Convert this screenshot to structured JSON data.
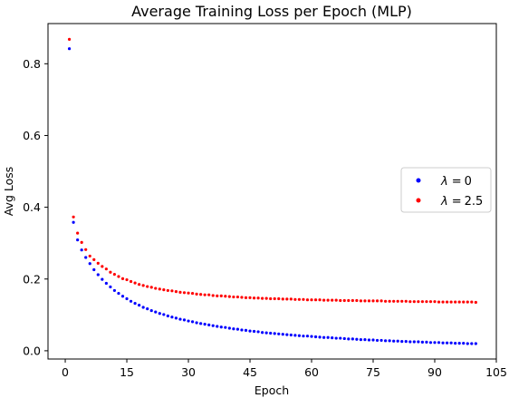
{
  "chart_data": {
    "type": "scatter",
    "title": "Average Training Loss per Epoch (MLP)",
    "xlabel": "Epoch",
    "ylabel": "Avg Loss",
    "xlim": [
      -4.2,
      105.0
    ],
    "ylim": [
      -0.023,
      0.912
    ],
    "xticks": [
      0,
      15,
      30,
      45,
      60,
      75,
      90,
      105
    ],
    "yticks": [
      0.0,
      0.2,
      0.4,
      0.6,
      0.8
    ],
    "ytick_labels": [
      "0.0",
      "0.2",
      "0.4",
      "0.6",
      "0.8"
    ],
    "grid": false,
    "legend_position": "center-right",
    "series": [
      {
        "name_prefix": "λ",
        "name_value": "0",
        "color": "#0000ff",
        "x": [
          1,
          2,
          3,
          4,
          5,
          6,
          7,
          8,
          9,
          10,
          11,
          12,
          13,
          14,
          15,
          16,
          17,
          18,
          19,
          20,
          21,
          22,
          23,
          24,
          25,
          26,
          27,
          28,
          29,
          30,
          31,
          32,
          33,
          34,
          35,
          36,
          37,
          38,
          39,
          40,
          41,
          42,
          43,
          44,
          45,
          46,
          47,
          48,
          49,
          50,
          51,
          52,
          53,
          54,
          55,
          56,
          57,
          58,
          59,
          60,
          61,
          62,
          63,
          64,
          65,
          66,
          67,
          68,
          69,
          70,
          71,
          72,
          73,
          74,
          75,
          76,
          77,
          78,
          79,
          80,
          81,
          82,
          83,
          84,
          85,
          86,
          87,
          88,
          89,
          90,
          91,
          92,
          93,
          94,
          95,
          96,
          97,
          98,
          99,
          100
        ],
        "y": [
          0.842,
          0.358,
          0.309,
          0.281,
          0.26,
          0.243,
          0.226,
          0.212,
          0.199,
          0.188,
          0.178,
          0.168,
          0.16,
          0.152,
          0.145,
          0.138,
          0.132,
          0.127,
          0.121,
          0.117,
          0.112,
          0.108,
          0.104,
          0.101,
          0.097,
          0.094,
          0.091,
          0.088,
          0.086,
          0.083,
          0.081,
          0.078,
          0.076,
          0.074,
          0.072,
          0.07,
          0.068,
          0.066,
          0.065,
          0.063,
          0.061,
          0.06,
          0.058,
          0.057,
          0.055,
          0.054,
          0.053,
          0.051,
          0.05,
          0.049,
          0.048,
          0.047,
          0.046,
          0.045,
          0.044,
          0.043,
          0.042,
          0.041,
          0.041,
          0.04,
          0.039,
          0.038,
          0.037,
          0.037,
          0.036,
          0.035,
          0.035,
          0.034,
          0.033,
          0.033,
          0.032,
          0.031,
          0.031,
          0.03,
          0.03,
          0.029,
          0.029,
          0.028,
          0.028,
          0.027,
          0.027,
          0.026,
          0.026,
          0.025,
          0.025,
          0.025,
          0.024,
          0.024,
          0.023,
          0.023,
          0.023,
          0.022,
          0.022,
          0.022,
          0.021,
          0.021,
          0.021,
          0.02,
          0.02,
          0.02
        ]
      },
      {
        "name_prefix": "λ",
        "name_value": "2.5",
        "color": "#ff0000",
        "x": [
          1,
          2,
          3,
          4,
          5,
          6,
          7,
          8,
          9,
          10,
          11,
          12,
          13,
          14,
          15,
          16,
          17,
          18,
          19,
          20,
          21,
          22,
          23,
          24,
          25,
          26,
          27,
          28,
          29,
          30,
          31,
          32,
          33,
          34,
          35,
          36,
          37,
          38,
          39,
          40,
          41,
          42,
          43,
          44,
          45,
          46,
          47,
          48,
          49,
          50,
          51,
          52,
          53,
          54,
          55,
          56,
          57,
          58,
          59,
          60,
          61,
          62,
          63,
          64,
          65,
          66,
          67,
          68,
          69,
          70,
          71,
          72,
          73,
          74,
          75,
          76,
          77,
          78,
          79,
          80,
          81,
          82,
          83,
          84,
          85,
          86,
          87,
          88,
          89,
          90,
          91,
          92,
          93,
          94,
          95,
          96,
          97,
          98,
          99,
          100
        ],
        "y": [
          0.868,
          0.373,
          0.328,
          0.302,
          0.282,
          0.264,
          0.254,
          0.244,
          0.235,
          0.228,
          0.219,
          0.213,
          0.207,
          0.201,
          0.198,
          0.193,
          0.189,
          0.185,
          0.182,
          0.179,
          0.177,
          0.174,
          0.172,
          0.17,
          0.168,
          0.167,
          0.165,
          0.163,
          0.162,
          0.161,
          0.16,
          0.158,
          0.157,
          0.156,
          0.156,
          0.154,
          0.153,
          0.153,
          0.152,
          0.151,
          0.15,
          0.15,
          0.149,
          0.148,
          0.148,
          0.147,
          0.147,
          0.146,
          0.146,
          0.145,
          0.145,
          0.145,
          0.144,
          0.144,
          0.144,
          0.143,
          0.143,
          0.143,
          0.142,
          0.142,
          0.142,
          0.142,
          0.141,
          0.141,
          0.141,
          0.141,
          0.14,
          0.14,
          0.14,
          0.14,
          0.14,
          0.139,
          0.139,
          0.139,
          0.139,
          0.139,
          0.139,
          0.138,
          0.138,
          0.138,
          0.138,
          0.138,
          0.138,
          0.137,
          0.137,
          0.137,
          0.137,
          0.137,
          0.137,
          0.137,
          0.136,
          0.136,
          0.136,
          0.136,
          0.136,
          0.136,
          0.136,
          0.136,
          0.136,
          0.135
        ]
      }
    ]
  }
}
